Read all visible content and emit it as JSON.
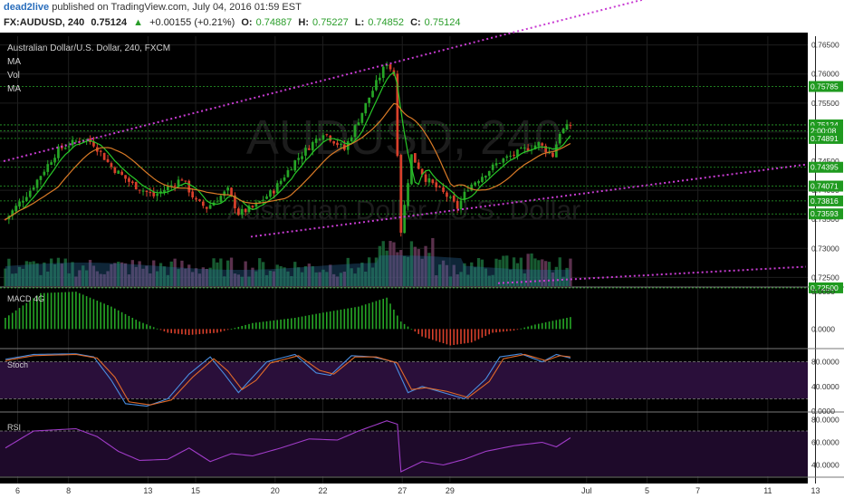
{
  "header": {
    "publisher": "dead2live",
    "published_text": "published on TradingView.com, July 04, 2016 01:59 EST",
    "symbol": "FX:AUDUSD, 240",
    "last": "0.75124",
    "change": "+0.00155 (+0.21%)",
    "o_label": "O:",
    "o": "0.74887",
    "h_label": "H:",
    "h": "0.75227",
    "l_label": "L:",
    "l": "0.74852",
    "c_label": "C:",
    "c": "0.75124"
  },
  "panel_labels": {
    "title": "Australian Dollar/U.S. Dollar, 240, FXCM",
    "ma1": "MA",
    "vol": "Vol",
    "ma2": "MA",
    "macd": "MACD 4G",
    "stoch": "Stoch",
    "rsi": "RSI",
    "watermark": "AUDUSD, 240",
    "watermark_sub": "Australian Dollar / U.S. Dollar"
  },
  "colors": {
    "background": "#000000",
    "bull": "#26a626",
    "bear": "#d9402b",
    "ma_fast": "#28c828",
    "ma_slow": "#d97a26",
    "channel": "#c83cd2",
    "stoch_k": "#4a8de0",
    "stoch_d": "#e06a2a",
    "rsi_line": "#a03cc8"
  },
  "chart_data": [
    {
      "type": "candlestick",
      "title": "Australian Dollar/U.S. Dollar, 240, FXCM",
      "y_ticks": [
        "0.76500",
        "0.76000",
        "0.75500",
        "0.75000",
        "0.74500",
        "0.74000",
        "0.73500",
        "0.73000",
        "0.72500"
      ],
      "y_tick_values": [
        0.765,
        0.76,
        0.755,
        0.75,
        0.745,
        0.74,
        0.735,
        0.73,
        0.725
      ],
      "ylim": [
        0.7235,
        0.7665
      ],
      "x_ticks": [
        "6",
        "8",
        "13",
        "15",
        "20",
        "22",
        "27",
        "29",
        "Jul",
        "5",
        "7",
        "11",
        "13"
      ],
      "x_tick_index": [
        1,
        17,
        42,
        57,
        82,
        97,
        122,
        137,
        180,
        199,
        215,
        237,
        252
      ],
      "levels": [
        {
          "label": "0.75785",
          "value": 0.75785
        },
        {
          "label": "0.75124",
          "value": 0.75124
        },
        {
          "label": "2:00:08",
          "value": 0.7502
        },
        {
          "label": "0.74891",
          "value": 0.74891
        },
        {
          "label": "0.74395",
          "value": 0.74395
        },
        {
          "label": "0.74071",
          "value": 0.74071
        },
        {
          "label": "0.73816",
          "value": 0.73816
        },
        {
          "label": "0.73593",
          "value": 0.73593
        },
        {
          "label": "0.72500",
          "value": 0.7232
        }
      ],
      "channel_upper": [
        [
          0,
          0.745
        ],
        [
          140,
          0.7665
        ]
      ],
      "channel_lower": [
        [
          70,
          0.732
        ],
        [
          232,
          0.7448
        ]
      ],
      "channel_bottom": [
        [
          140,
          0.724
        ],
        [
          232,
          0.727
        ]
      ],
      "anchors_close": [
        [
          0,
          0.735
        ],
        [
          7,
          0.74
        ],
        [
          15,
          0.747
        ],
        [
          22,
          0.749
        ],
        [
          25,
          0.748
        ],
        [
          30,
          0.744
        ],
        [
          36,
          0.741
        ],
        [
          42,
          0.739
        ],
        [
          50,
          0.742
        ],
        [
          54,
          0.738
        ],
        [
          57,
          0.737
        ],
        [
          63,
          0.74
        ],
        [
          66,
          0.736
        ],
        [
          70,
          0.737
        ],
        [
          76,
          0.74
        ],
        [
          82,
          0.745
        ],
        [
          90,
          0.75
        ],
        [
          96,
          0.747
        ],
        [
          103,
          0.756
        ],
        [
          108,
          0.762
        ],
        [
          110,
          0.76
        ],
        [
          112,
          0.733
        ],
        [
          115,
          0.746
        ],
        [
          119,
          0.742
        ],
        [
          125,
          0.739
        ],
        [
          128,
          0.737
        ],
        [
          131,
          0.7405
        ],
        [
          136,
          0.743
        ],
        [
          140,
          0.745
        ],
        [
          147,
          0.747
        ],
        [
          151,
          0.748
        ],
        [
          155,
          0.746
        ],
        [
          157,
          0.75
        ],
        [
          160,
          0.7512
        ]
      ]
    },
    {
      "type": "bar",
      "title": "MACD 4G",
      "y_ticks": [
        "0.0050",
        "0.0000"
      ],
      "y_tick_values": [
        0.005,
        0.0
      ],
      "ylim": [
        -0.0025,
        0.0055
      ],
      "anchors": [
        [
          0,
          0.0015
        ],
        [
          10,
          0.0048
        ],
        [
          20,
          0.005
        ],
        [
          30,
          0.003
        ],
        [
          38,
          0.001
        ],
        [
          46,
          -0.0005
        ],
        [
          52,
          -0.0008
        ],
        [
          60,
          -0.0005
        ],
        [
          70,
          0.0008
        ],
        [
          82,
          0.0015
        ],
        [
          90,
          0.0022
        ],
        [
          100,
          0.003
        ],
        [
          108,
          0.0042
        ],
        [
          112,
          0.001
        ],
        [
          118,
          -0.001
        ],
        [
          126,
          -0.0022
        ],
        [
          132,
          -0.0018
        ],
        [
          138,
          -0.0005
        ],
        [
          144,
          -0.0002
        ],
        [
          150,
          0.0006
        ],
        [
          156,
          0.0012
        ],
        [
          160,
          0.0016
        ]
      ]
    },
    {
      "type": "line",
      "title": "Stoch",
      "y_ticks": [
        "80.0000",
        "40.0000",
        "0.0000"
      ],
      "y_tick_values": [
        80,
        40,
        0
      ],
      "ylim": [
        0,
        100
      ],
      "band": [
        20,
        80
      ],
      "k_anchors": [
        [
          0,
          84
        ],
        [
          8,
          92
        ],
        [
          20,
          93
        ],
        [
          25,
          88
        ],
        [
          30,
          50
        ],
        [
          34,
          12
        ],
        [
          40,
          8
        ],
        [
          46,
          20
        ],
        [
          52,
          60
        ],
        [
          58,
          88
        ],
        [
          62,
          60
        ],
        [
          66,
          30
        ],
        [
          70,
          55
        ],
        [
          74,
          80
        ],
        [
          82,
          92
        ],
        [
          88,
          62
        ],
        [
          92,
          58
        ],
        [
          98,
          90
        ],
        [
          104,
          88
        ],
        [
          110,
          80
        ],
        [
          114,
          30
        ],
        [
          118,
          40
        ],
        [
          124,
          30
        ],
        [
          130,
          20
        ],
        [
          136,
          52
        ],
        [
          140,
          88
        ],
        [
          146,
          93
        ],
        [
          152,
          80
        ],
        [
          156,
          92
        ],
        [
          160,
          86
        ]
      ],
      "d_anchors": [
        [
          0,
          82
        ],
        [
          8,
          90
        ],
        [
          20,
          92
        ],
        [
          26,
          86
        ],
        [
          31,
          55
        ],
        [
          35,
          15
        ],
        [
          41,
          10
        ],
        [
          47,
          18
        ],
        [
          53,
          55
        ],
        [
          59,
          85
        ],
        [
          63,
          65
        ],
        [
          67,
          35
        ],
        [
          71,
          50
        ],
        [
          75,
          78
        ],
        [
          83,
          90
        ],
        [
          89,
          66
        ],
        [
          93,
          60
        ],
        [
          99,
          88
        ],
        [
          105,
          88
        ],
        [
          111,
          78
        ],
        [
          115,
          35
        ],
        [
          119,
          38
        ],
        [
          125,
          32
        ],
        [
          131,
          22
        ],
        [
          137,
          48
        ],
        [
          141,
          85
        ],
        [
          147,
          92
        ],
        [
          153,
          82
        ],
        [
          157,
          90
        ],
        [
          160,
          88
        ]
      ]
    },
    {
      "type": "line",
      "title": "RSI",
      "y_ticks": [
        "80.0000",
        "60.0000",
        "40.0000"
      ],
      "y_tick_values": [
        80,
        60,
        40
      ],
      "ylim": [
        30,
        86
      ],
      "band": [
        30,
        70
      ],
      "anchors": [
        [
          0,
          55
        ],
        [
          8,
          70
        ],
        [
          20,
          72
        ],
        [
          26,
          65
        ],
        [
          32,
          52
        ],
        [
          38,
          44
        ],
        [
          46,
          45
        ],
        [
          52,
          55
        ],
        [
          58,
          43
        ],
        [
          64,
          50
        ],
        [
          70,
          48
        ],
        [
          78,
          55
        ],
        [
          86,
          63
        ],
        [
          94,
          62
        ],
        [
          100,
          70
        ],
        [
          108,
          79
        ],
        [
          111,
          76
        ],
        [
          112,
          34
        ],
        [
          118,
          43
        ],
        [
          124,
          40
        ],
        [
          130,
          45
        ],
        [
          136,
          52
        ],
        [
          144,
          57
        ],
        [
          152,
          60
        ],
        [
          156,
          56
        ],
        [
          160,
          64
        ]
      ]
    }
  ]
}
